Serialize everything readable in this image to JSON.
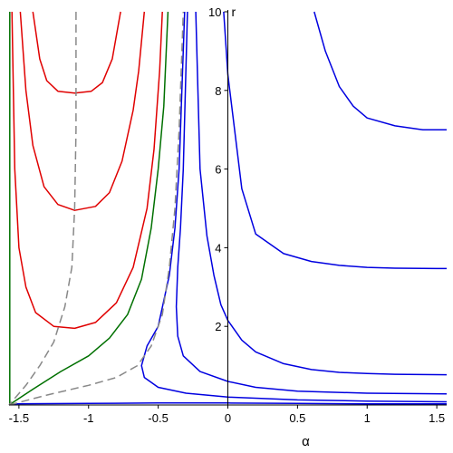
{
  "chart_data": {
    "type": "line",
    "title": "",
    "xlabel": "α",
    "ylabel": "r",
    "xlim": [
      -1.5708,
      1.5708
    ],
    "ylim": [
      0,
      10
    ],
    "grid": false,
    "x_ticks": [
      {
        "value": -1.5,
        "label": "-1.5"
      },
      {
        "value": -1.0,
        "label": "-1"
      },
      {
        "value": -0.5,
        "label": "-0.5"
      },
      {
        "value": 0,
        "label": "0"
      },
      {
        "value": 0.5,
        "label": "0.5"
      },
      {
        "value": 1.0,
        "label": "1"
      },
      {
        "value": 1.5,
        "label": "1.5"
      }
    ],
    "y_ticks": [
      {
        "value": 2,
        "label": "2"
      },
      {
        "value": 4,
        "label": "4"
      },
      {
        "value": 6,
        "label": "6"
      },
      {
        "value": 8,
        "label": "8"
      },
      {
        "value": 10,
        "label": "10"
      }
    ],
    "series": [
      {
        "color": "#0000e0",
        "dash": false,
        "points": [
          [
            -0.03,
            10.0
          ],
          [
            0.0,
            8.4
          ],
          [
            0.1,
            5.5
          ],
          [
            0.2,
            4.35
          ],
          [
            0.4,
            3.85
          ],
          [
            0.6,
            3.65
          ],
          [
            0.8,
            3.55
          ],
          [
            1.0,
            3.5
          ],
          [
            1.2,
            3.48
          ],
          [
            1.5,
            3.47
          ],
          [
            1.5708,
            3.47
          ]
        ]
      },
      {
        "color": "#0000e0",
        "dash": false,
        "points": [
          [
            0.62,
            10.0
          ],
          [
            0.7,
            9.0
          ],
          [
            0.8,
            8.1
          ],
          [
            0.9,
            7.6
          ],
          [
            1.0,
            7.3
          ],
          [
            1.2,
            7.1
          ],
          [
            1.4,
            7.0
          ],
          [
            1.5708,
            7.0
          ]
        ]
      },
      {
        "color": "#0000e0",
        "dash": false,
        "points": [
          [
            -0.23,
            10.0
          ],
          [
            -0.2,
            6.0
          ],
          [
            -0.15,
            4.3
          ],
          [
            -0.1,
            3.3
          ],
          [
            -0.05,
            2.55
          ],
          [
            0.0,
            2.15
          ],
          [
            0.1,
            1.65
          ],
          [
            0.2,
            1.35
          ],
          [
            0.4,
            1.05
          ],
          [
            0.6,
            0.9
          ],
          [
            0.8,
            0.83
          ],
          [
            1.0,
            0.8
          ],
          [
            1.2,
            0.78
          ],
          [
            1.5708,
            0.77
          ]
        ]
      },
      {
        "color": "#0000e0",
        "dash": false,
        "points": [
          [
            -0.29,
            10.0
          ],
          [
            -0.32,
            6.0
          ],
          [
            -0.34,
            4.5
          ],
          [
            -0.36,
            3.5
          ],
          [
            -0.37,
            2.5
          ],
          [
            -0.36,
            1.75
          ],
          [
            -0.32,
            1.25
          ],
          [
            -0.2,
            0.85
          ],
          [
            0.0,
            0.6
          ],
          [
            0.2,
            0.45
          ],
          [
            0.5,
            0.35
          ],
          [
            1.0,
            0.3
          ],
          [
            1.5708,
            0.28
          ]
        ]
      },
      {
        "color": "#0000e0",
        "dash": false,
        "points": [
          [
            -0.31,
            10.0
          ],
          [
            -0.35,
            6.0
          ],
          [
            -0.38,
            4.5
          ],
          [
            -0.42,
            3.3
          ],
          [
            -0.5,
            2.0
          ],
          [
            -0.58,
            1.5
          ],
          [
            -0.62,
            1.0
          ],
          [
            -0.6,
            0.7
          ],
          [
            -0.5,
            0.45
          ],
          [
            -0.3,
            0.3
          ],
          [
            0.0,
            0.2
          ],
          [
            0.5,
            0.13
          ],
          [
            1.0,
            0.1
          ],
          [
            1.5708,
            0.08
          ]
        ]
      },
      {
        "color": "#0000e0",
        "dash": false,
        "points": [
          [
            -1.5708,
            0.03
          ],
          [
            -1.0,
            0.04
          ],
          [
            -0.5,
            0.05
          ],
          [
            0.0,
            0.05
          ],
          [
            0.5,
            0.04
          ],
          [
            1.0,
            0.03
          ],
          [
            1.5708,
            0.03
          ]
        ]
      },
      {
        "color": "#e00000",
        "dash": false,
        "points": [
          [
            -1.4,
            10.0
          ],
          [
            -1.35,
            8.8
          ],
          [
            -1.3,
            8.25
          ],
          [
            -1.22,
            7.98
          ],
          [
            -1.1,
            7.93
          ],
          [
            -0.98,
            7.98
          ],
          [
            -0.9,
            8.2
          ],
          [
            -0.83,
            8.8
          ],
          [
            -0.77,
            10.0
          ]
        ]
      },
      {
        "color": "#e00000",
        "dash": false,
        "points": [
          [
            -1.49,
            10.0
          ],
          [
            -1.45,
            8.0
          ],
          [
            -1.4,
            6.6
          ],
          [
            -1.32,
            5.55
          ],
          [
            -1.22,
            5.1
          ],
          [
            -1.1,
            4.95
          ],
          [
            -0.95,
            5.05
          ],
          [
            -0.85,
            5.4
          ],
          [
            -0.76,
            6.2
          ],
          [
            -0.68,
            7.5
          ],
          [
            -0.64,
            8.5
          ],
          [
            -0.6,
            10.0
          ]
        ]
      },
      {
        "color": "#e00000",
        "dash": false,
        "points": [
          [
            -1.55,
            10.0
          ],
          [
            -1.53,
            6.0
          ],
          [
            -1.5,
            4.0
          ],
          [
            -1.45,
            3.0
          ],
          [
            -1.38,
            2.35
          ],
          [
            -1.25,
            2.0
          ],
          [
            -1.1,
            1.95
          ],
          [
            -0.95,
            2.1
          ],
          [
            -0.8,
            2.6
          ],
          [
            -0.68,
            3.5
          ],
          [
            -0.58,
            5.0
          ],
          [
            -0.53,
            6.5
          ],
          [
            -0.49,
            8.5
          ],
          [
            -0.47,
            10.0
          ]
        ]
      },
      {
        "color": "#007000",
        "dash": false,
        "points": [
          [
            -1.5658,
            10.0
          ],
          [
            -1.5658,
            0.0
          ]
        ]
      },
      {
        "color": "#007000",
        "dash": false,
        "points": [
          [
            -1.5708,
            0.0
          ],
          [
            -1.4,
            0.4
          ],
          [
            -1.2,
            0.85
          ],
          [
            -1.0,
            1.25
          ],
          [
            -0.85,
            1.7
          ],
          [
            -0.72,
            2.3
          ],
          [
            -0.62,
            3.2
          ],
          [
            -0.55,
            4.5
          ],
          [
            -0.5,
            6.0
          ],
          [
            -0.46,
            7.6
          ],
          [
            -0.43,
            10.0
          ]
        ]
      },
      {
        "color": "#888888",
        "dash": true,
        "points": [
          [
            -1.09,
            10.0
          ],
          [
            -1.09,
            7.0
          ],
          [
            -1.1,
            5.0
          ],
          [
            -1.12,
            3.5
          ],
          [
            -1.17,
            2.5
          ],
          [
            -1.25,
            1.6
          ],
          [
            -1.35,
            1.0
          ],
          [
            -1.45,
            0.5
          ],
          [
            -1.5708,
            0.0
          ]
        ]
      },
      {
        "color": "#888888",
        "dash": true,
        "points": [
          [
            -1.5708,
            0.0
          ],
          [
            -1.3,
            0.25
          ],
          [
            -1.0,
            0.5
          ],
          [
            -0.8,
            0.7
          ],
          [
            -0.65,
            1.0
          ],
          [
            -0.55,
            1.5
          ],
          [
            -0.47,
            2.3
          ],
          [
            -0.42,
            3.5
          ],
          [
            -0.38,
            5.0
          ],
          [
            -0.35,
            7.0
          ],
          [
            -0.32,
            10.0
          ]
        ]
      }
    ]
  }
}
